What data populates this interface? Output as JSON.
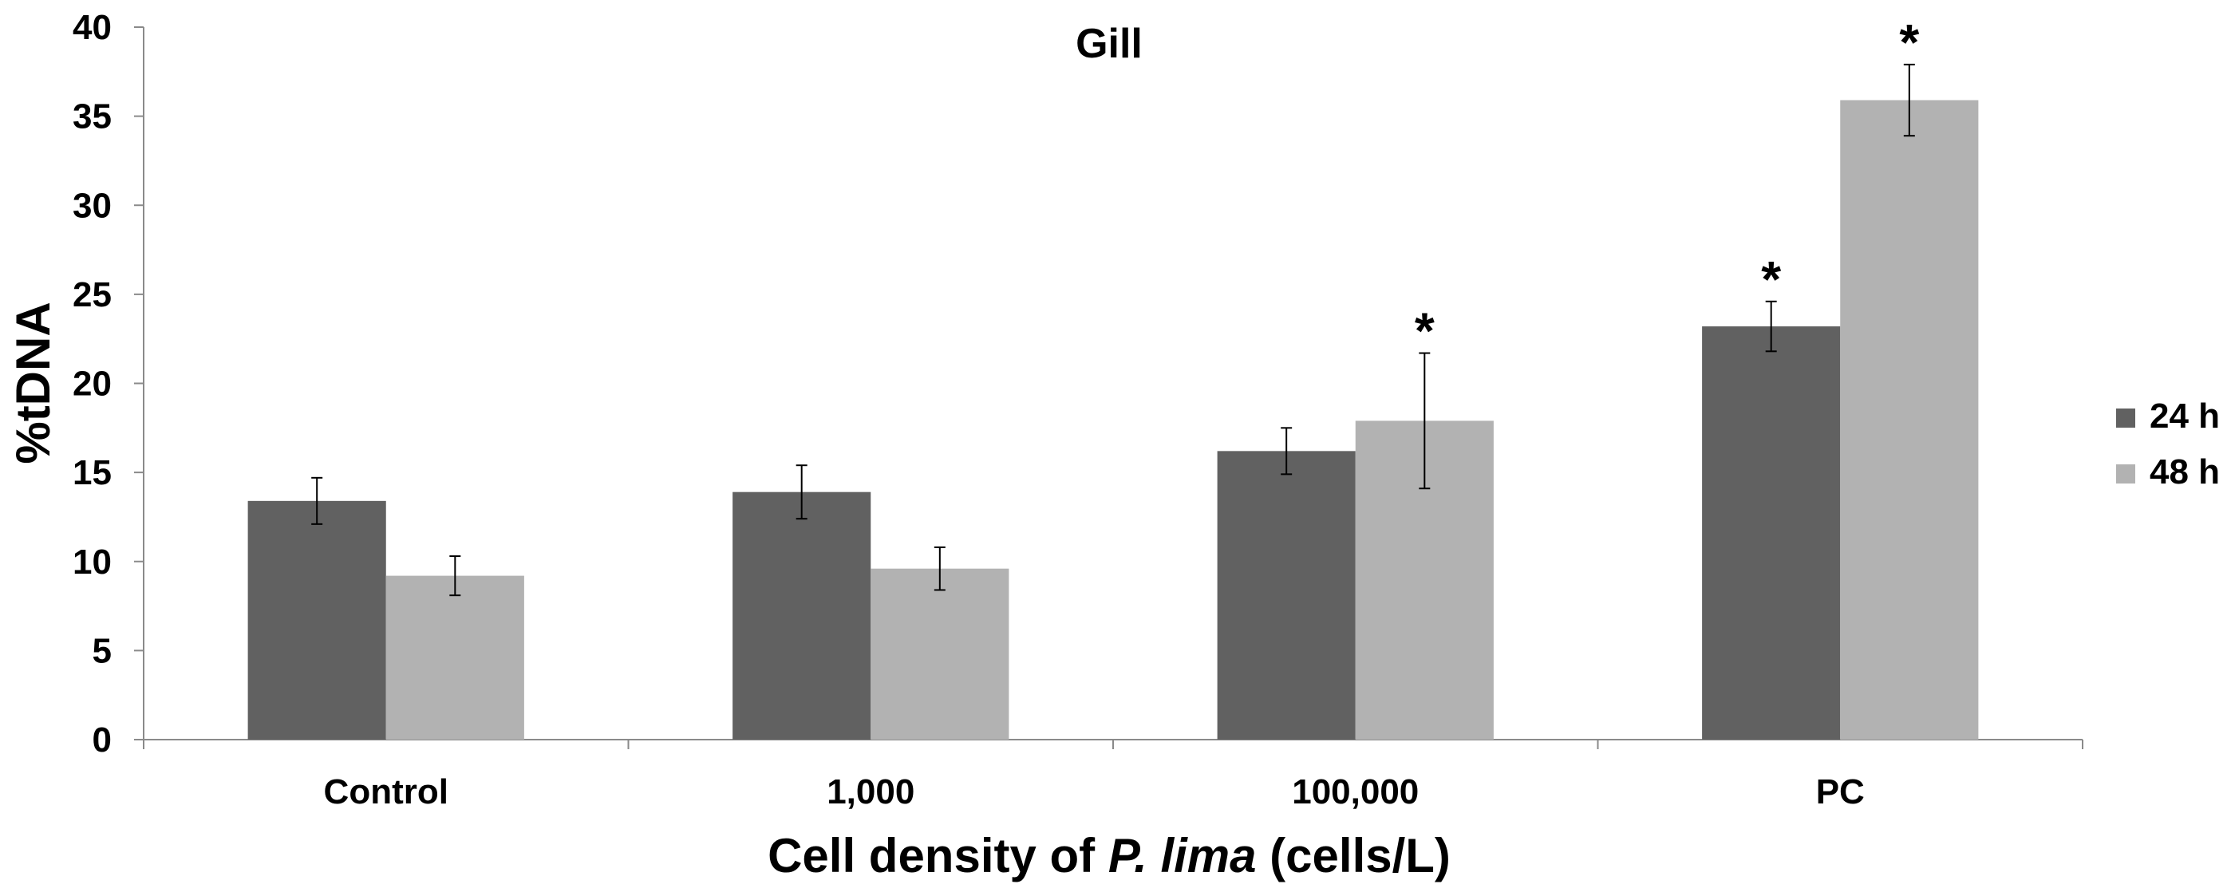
{
  "chart_data": {
    "type": "bar",
    "title": "Gill",
    "ylabel": "%tDNA",
    "xlabel_parts": [
      "Cell density of ",
      "P. lima",
      " (cells/L)"
    ],
    "ylim": [
      0,
      40
    ],
    "yticks": [
      0,
      5,
      10,
      15,
      20,
      25,
      30,
      35,
      40
    ],
    "grid": false,
    "legend_position": "right",
    "categories": [
      "Control",
      "1,000",
      "100,000",
      "PC"
    ],
    "series": [
      {
        "name": "24 h",
        "color": "#616161",
        "values": [
          13.4,
          13.9,
          16.2,
          23.2
        ],
        "error": [
          1.3,
          1.5,
          1.3,
          1.4
        ],
        "significant": [
          false,
          false,
          false,
          true
        ]
      },
      {
        "name": "48 h",
        "color": "#b2b2b2",
        "values": [
          9.2,
          9.6,
          17.9,
          35.9
        ],
        "error": [
          1.1,
          1.2,
          3.8,
          2.0
        ],
        "significant": [
          false,
          false,
          true,
          true
        ]
      }
    ],
    "significance_marker": "*"
  }
}
